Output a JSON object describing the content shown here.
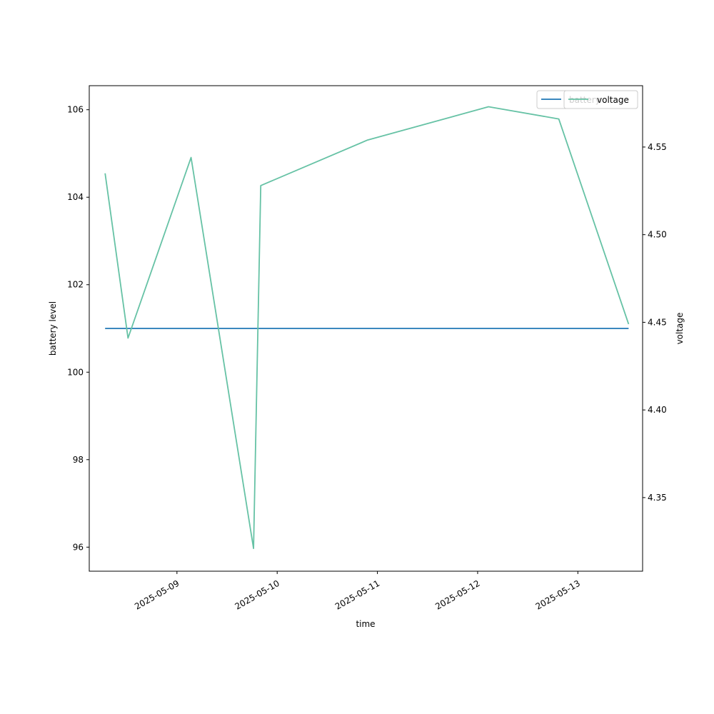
{
  "chart_data": {
    "type": "line",
    "xlabel": "time",
    "ylabel_left": "battery level",
    "ylabel_right": "voltage",
    "x_ticks": [
      "2025-05-09",
      "2025-05-10",
      "2025-05-11",
      "2025-05-12",
      "2025-05-13"
    ],
    "y_left_ticks": [
      "96",
      "98",
      "100",
      "102",
      "104",
      "106"
    ],
    "y_right_ticks": [
      "4.35",
      "4.40",
      "4.45",
      "4.50",
      "4.55"
    ],
    "y_left_lim": [
      95.45,
      106.55
    ],
    "y_right_lim": [
      4.308,
      4.585
    ],
    "x_lim": [
      "2025-05-08 03:00",
      "2025-05-13 15:30"
    ],
    "legend_position": "top-right",
    "series": [
      {
        "name": "battery",
        "axis": "left",
        "color": "#1f77b4",
        "x": [
          "2025-05-08 06:48",
          "2025-05-13 12:09"
        ],
        "y": [
          101,
          101
        ]
      },
      {
        "name": "voltage",
        "axis": "right",
        "color": "#66c2a5",
        "x": [
          "2025-05-08 06:48",
          "2025-05-08 12:17",
          "2025-05-09 03:23",
          "2025-05-09 18:20",
          "2025-05-09 20:04",
          "2025-05-10 21:40",
          "2025-05-12 02:36",
          "2025-05-12 19:26",
          "2025-05-13 12:09"
        ],
        "y": [
          4.535,
          4.441,
          4.544,
          4.321,
          4.528,
          4.554,
          4.573,
          4.566,
          4.449
        ]
      }
    ]
  }
}
